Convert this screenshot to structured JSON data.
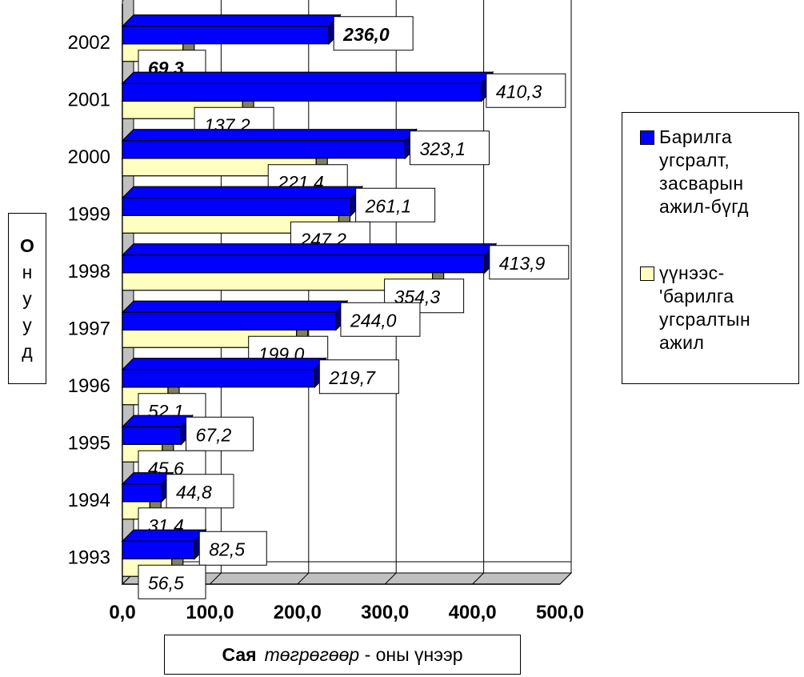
{
  "chart_data": {
    "type": "bar",
    "orientation": "horizontal",
    "three_d": true,
    "categories": [
      "2002",
      "2001",
      "2000",
      "1999",
      "1998",
      "1997",
      "1996",
      "1995",
      "1994",
      "1993"
    ],
    "series": [
      {
        "name": "Барилга угсралт, засварын ажил-бүгд",
        "color": "#0000ff",
        "values": [
          236.0,
          410.3,
          323.1,
          261.1,
          413.9,
          244.0,
          219.7,
          67.2,
          44.8,
          82.5
        ],
        "labels": [
          "236,0",
          "410,3",
          "323,1",
          "261,1",
          "413,9",
          "244,0",
          "219,7",
          "67,2",
          "44,8",
          "82,5"
        ]
      },
      {
        "name": "үүнээс- 'барилга угсралтын ажил",
        "color": "#ffffc0",
        "values": [
          69.3,
          137.2,
          221.4,
          247.2,
          354.3,
          199.0,
          52.1,
          45.6,
          31.4,
          56.5
        ],
        "labels": [
          "69,3",
          "137,2",
          "221,4",
          "247,2",
          "354,3",
          "199,0",
          "52,1",
          "45,6",
          "31,4",
          "56,5"
        ]
      }
    ],
    "xticks": [
      "0,0",
      "100,0",
      "200,0",
      "300,0",
      "400,0",
      "500,0"
    ],
    "xlim": [
      0,
      500
    ],
    "grid": true,
    "legend_position": "right",
    "ylabel_letters": [
      "О",
      "н",
      "у",
      "у",
      "д"
    ],
    "xlabel": {
      "bold": "Сая",
      "italic": "төгрөгөөр",
      "rest": " - оны үнээр"
    }
  },
  "legend": {
    "items": [
      {
        "label": "Барилга\nугсралт,\nзасварын\nажил-бүгд",
        "color": "#0000ff"
      },
      {
        "label": "үүнээс-\n'барилга\nугсралтын\nажил",
        "color": "#ffffc0"
      }
    ]
  },
  "colors": {
    "blue": "#0000ff",
    "yellow": "#ffffc0",
    "wall": "#c0c0c0",
    "shadow": "#808060"
  }
}
